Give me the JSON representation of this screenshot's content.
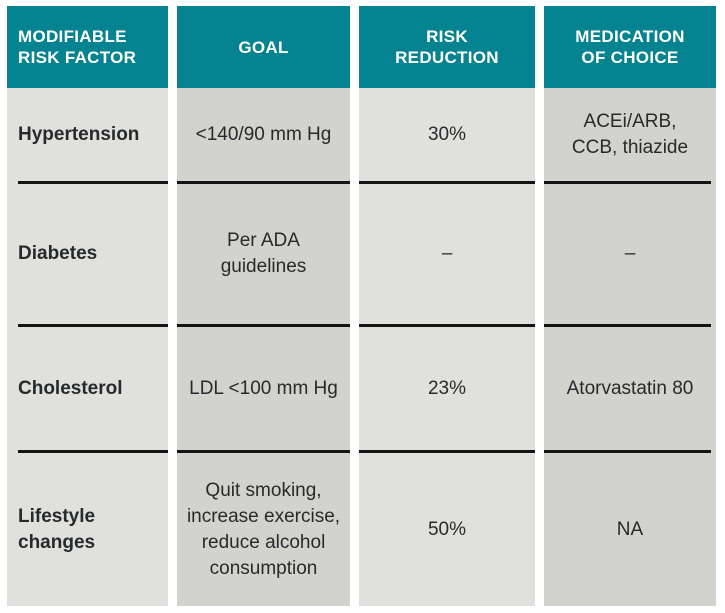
{
  "colors": {
    "teal": "#068390",
    "cell-light": "#e0e1dc",
    "cell-dark": "#d3d3cd",
    "line": "#141414",
    "header-text": "#ffffff",
    "text": "#272a2c"
  },
  "header": {
    "risk_factor": "MODIFIABLE\nRISK FACTOR",
    "goal": "GOAL",
    "risk_reduction": "RISK\nREDUCTION",
    "medication": "MEDICATION\nOF CHOICE"
  },
  "rows": [
    {
      "factor": "Hypertension",
      "goal": "<140/90 mm Hg",
      "reduction": "30%",
      "medication": "ACEi/ARB,\nCCB, thiazide"
    },
    {
      "factor": "Diabetes",
      "goal": "Per ADA\nguidelines",
      "reduction": "–",
      "medication": "–"
    },
    {
      "factor": "Cholesterol",
      "goal": "LDL <100 mm Hg",
      "reduction": "23%",
      "medication": "Atorvastatin 80"
    },
    {
      "factor": "Lifestyle\nchanges",
      "goal": "Quit smoking,\nincrease exercise,\nreduce alcohol\nconsumption",
      "reduction": "50%",
      "medication": "NA"
    }
  ],
  "chart_data": {
    "type": "table",
    "columns": [
      "MODIFIABLE RISK FACTOR",
      "GOAL",
      "RISK REDUCTION",
      "MEDICATION OF CHOICE"
    ],
    "rows": [
      [
        "Hypertension",
        "<140/90 mm Hg",
        "30%",
        "ACEi/ARB, CCB, thiazide"
      ],
      [
        "Diabetes",
        "Per ADA guidelines",
        "–",
        "–"
      ],
      [
        "Cholesterol",
        "LDL <100 mm Hg",
        "23%",
        "Atorvastatin 80"
      ],
      [
        "Lifestyle changes",
        "Quit smoking, increase exercise, reduce alcohol consumption",
        "50%",
        "NA"
      ]
    ]
  }
}
